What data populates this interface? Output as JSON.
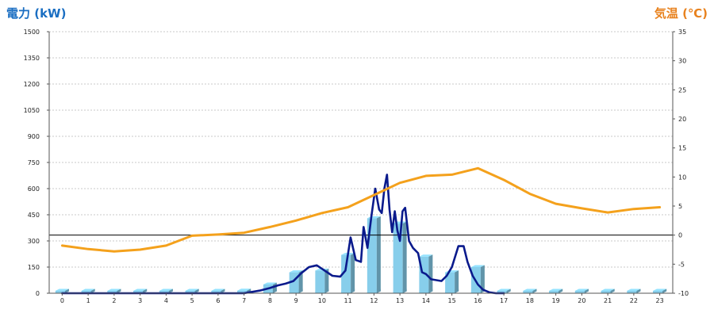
{
  "chart_data": {
    "type": "bar",
    "left_axis": {
      "label": "電力 (kW)",
      "range": [
        0,
        1500
      ],
      "ticks": [
        0,
        150,
        300,
        450,
        600,
        750,
        900,
        1050,
        1200,
        1350,
        1500
      ],
      "color": "#1a6ec2"
    },
    "right_axis": {
      "label": "気温 (℃)",
      "range": [
        -10,
        35
      ],
      "ticks": [
        -10,
        -5,
        0,
        5,
        10,
        15,
        20,
        25,
        30,
        35
      ],
      "color": "#e8821e"
    },
    "x_axis": {
      "categories": [
        "0",
        "1",
        "2",
        "3",
        "4",
        "5",
        "6",
        "7",
        "8",
        "9",
        "10",
        "11",
        "12",
        "13",
        "14",
        "15",
        "16",
        "17",
        "18",
        "19",
        "20",
        "21",
        "22",
        "23"
      ]
    },
    "grid": true,
    "series": [
      {
        "kind": "bar",
        "axis": "left",
        "color": "#8fd3ee",
        "values": [
          0,
          0,
          0,
          0,
          0,
          0,
          0,
          0,
          0,
          0,
          0,
          0,
          0,
          0,
          0,
          0,
          0,
          0,
          0,
          0,
          0,
          0,
          0,
          0
        ]
      },
      {
        "kind": "bar",
        "axis": "left",
        "color": "#87ceeb",
        "values": [
          0,
          0,
          0,
          0,
          0,
          0,
          0,
          15,
          50,
          120,
          130,
          220,
          430,
          400,
          210,
          120,
          150,
          0,
          0,
          0,
          0,
          0,
          0,
          0
        ]
      },
      {
        "kind": "line",
        "axis": "left",
        "color": "#0a1a8c",
        "x": [
          0,
          1,
          2,
          3,
          4,
          5,
          6,
          7,
          7.2,
          7.6,
          8.0,
          8.3,
          8.6,
          8.9,
          9.2,
          9.5,
          9.8,
          10.0,
          10.4,
          10.7,
          10.9,
          11.1,
          11.3,
          11.5,
          11.6,
          11.75,
          11.9,
          12.05,
          12.2,
          12.3,
          12.4,
          12.5,
          12.6,
          12.7,
          12.8,
          12.9,
          13.0,
          13.1,
          13.2,
          13.35,
          13.5,
          13.7,
          13.85,
          14.0,
          14.2,
          14.4,
          14.6,
          14.8,
          15.0,
          15.25,
          15.45,
          15.6,
          15.8,
          16.0,
          16.2,
          16.45,
          16.7,
          17
        ],
        "y": [
          0,
          0,
          0,
          0,
          0,
          0,
          0,
          0,
          5,
          15,
          30,
          45,
          55,
          70,
          115,
          150,
          160,
          140,
          100,
          95,
          130,
          320,
          190,
          180,
          380,
          260,
          440,
          600,
          480,
          460,
          600,
          680,
          480,
          350,
          470,
          360,
          300,
          470,
          490,
          300,
          260,
          230,
          120,
          110,
          80,
          75,
          70,
          100,
          150,
          270,
          270,
          180,
          100,
          50,
          20,
          5,
          0,
          0
        ]
      },
      {
        "kind": "line",
        "axis": "right",
        "color": "#f4a11c",
        "values": [
          -1.8,
          -2.4,
          -2.8,
          -2.5,
          -1.8,
          -0.1,
          0.1,
          0.4,
          1.4,
          2.5,
          3.8,
          4.8,
          6.9,
          9.0,
          10.2,
          10.4,
          11.5,
          9.5,
          7.1,
          5.4,
          4.6,
          3.9,
          4.5,
          4.8
        ]
      },
      {
        "kind": "reference-line",
        "axis": "right",
        "value": 0,
        "color": "#000000"
      }
    ]
  }
}
